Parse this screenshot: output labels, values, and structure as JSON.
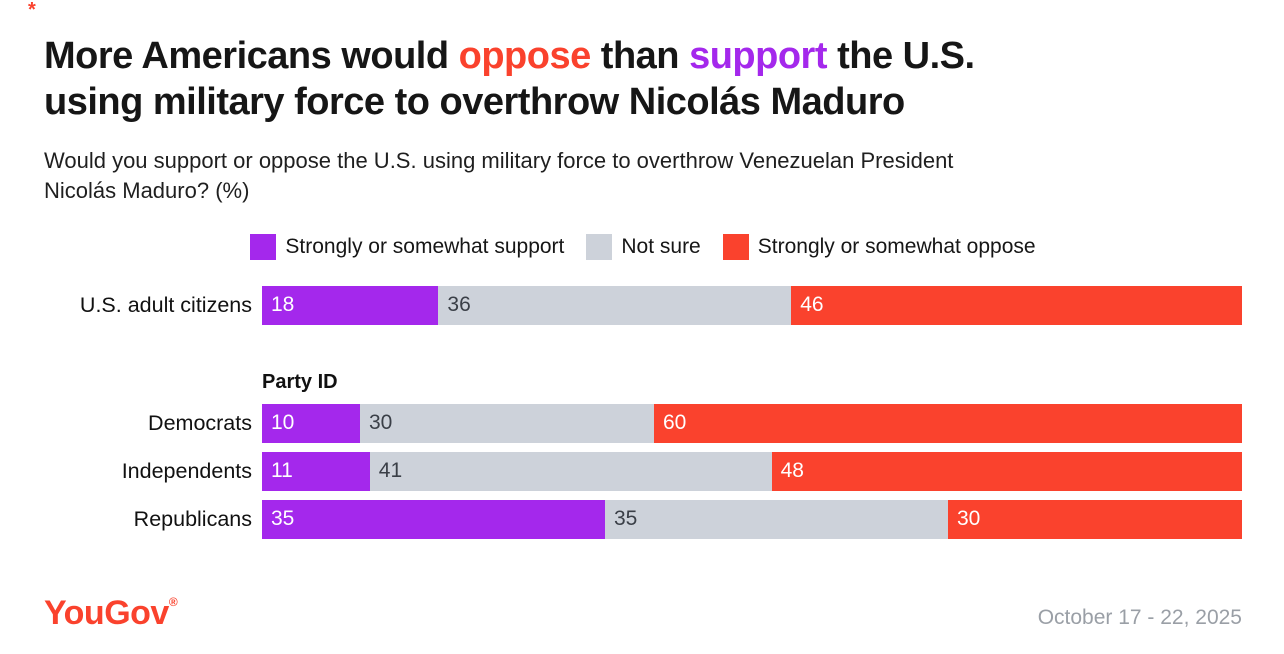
{
  "corner_mark": "*",
  "title": {
    "line1_pre": "More Americans would ",
    "oppose_word": "oppose",
    "line1_mid": " than ",
    "support_word": "support",
    "line1_post": " the U.S.",
    "line2": "using military force to overthrow Nicolás Maduro"
  },
  "subtitle": {
    "line1": "Would you support or oppose the U.S. using military force to overthrow Venezuelan President",
    "line2": "Nicolás Maduro? (%)"
  },
  "legend": [
    {
      "label": "Strongly or somewhat support",
      "color": "#a428ec",
      "key": "support"
    },
    {
      "label": "Not sure",
      "color": "#cdd2da",
      "key": "not-sure"
    },
    {
      "label": "Strongly or somewhat oppose",
      "color": "#fa422d",
      "key": "oppose"
    }
  ],
  "chart_data": {
    "type": "bar",
    "orientation": "horizontal",
    "stacked": true,
    "unit": "%",
    "xlim": [
      0,
      100
    ],
    "series_names": [
      "Strongly or somewhat support",
      "Not sure",
      "Strongly or somewhat oppose"
    ],
    "series_keys": [
      "support",
      "not-sure",
      "oppose"
    ],
    "colors": [
      "#a428ec",
      "#cdd2da",
      "#fa422d"
    ],
    "value_label_colors": [
      "#ffffff",
      "#3a3f47",
      "#ffffff"
    ],
    "groups": [
      {
        "label": "U.S. adult citizens",
        "values": [
          18,
          36,
          46
        ]
      },
      {
        "group_header": "Party ID"
      },
      {
        "label": "Democrats",
        "values": [
          10,
          30,
          60
        ]
      },
      {
        "label": "Independents",
        "values": [
          11,
          41,
          48
        ]
      },
      {
        "label": "Republicans",
        "values": [
          35,
          35,
          30
        ]
      }
    ]
  },
  "footer": {
    "logo": "YouGov",
    "logo_mark": "®",
    "date": "October 17 - 22, 2025"
  }
}
